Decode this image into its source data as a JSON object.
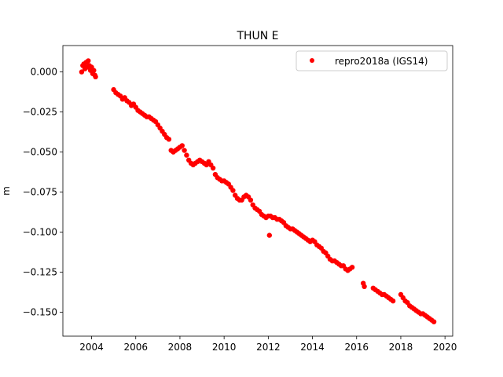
{
  "chart_data": {
    "type": "scatter",
    "title": "THUN E",
    "xlabel": "",
    "ylabel": "m",
    "xlim": [
      2002.7,
      2020.35
    ],
    "ylim": [
      -0.165,
      0.0165
    ],
    "x_ticks": [
      2004,
      2006,
      2008,
      2010,
      2012,
      2014,
      2016,
      2018,
      2020
    ],
    "x_tick_labels": [
      "2004",
      "2006",
      "2008",
      "2010",
      "2012",
      "2014",
      "2016",
      "2018",
      "2020"
    ],
    "y_ticks": [
      0.0,
      -0.025,
      -0.05,
      -0.075,
      -0.1,
      -0.125,
      -0.15
    ],
    "y_tick_labels": [
      "0.000",
      "−0.025",
      "−0.050",
      "−0.075",
      "−0.100",
      "−0.125",
      "−0.150"
    ],
    "grid": false,
    "legend_position": "top-right",
    "series": [
      {
        "name": "repro2018a (IGS14)",
        "color": "#ff0000",
        "marker": "circle",
        "points": [
          [
            2003.55,
            0.0
          ],
          [
            2003.6,
            0.004
          ],
          [
            2003.65,
            0.005
          ],
          [
            2003.7,
            0.002
          ],
          [
            2003.75,
            0.006
          ],
          [
            2003.8,
            0.003
          ],
          [
            2003.85,
            0.007
          ],
          [
            2003.9,
            0.004
          ],
          [
            2003.95,
            0.001
          ],
          [
            2004.0,
            0.003
          ],
          [
            2004.05,
            -0.001
          ],
          [
            2004.1,
            0.001
          ],
          [
            2004.15,
            -0.002
          ],
          [
            2004.18,
            -0.003
          ],
          [
            2005.0,
            -0.011
          ],
          [
            2005.1,
            -0.013
          ],
          [
            2005.2,
            -0.014
          ],
          [
            2005.3,
            -0.015
          ],
          [
            2005.4,
            -0.017
          ],
          [
            2005.5,
            -0.016
          ],
          [
            2005.6,
            -0.018
          ],
          [
            2005.7,
            -0.019
          ],
          [
            2005.8,
            -0.021
          ],
          [
            2005.9,
            -0.02
          ],
          [
            2006.0,
            -0.022
          ],
          [
            2006.1,
            -0.024
          ],
          [
            2006.2,
            -0.025
          ],
          [
            2006.3,
            -0.026
          ],
          [
            2006.4,
            -0.027
          ],
          [
            2006.5,
            -0.028
          ],
          [
            2006.6,
            -0.028
          ],
          [
            2006.7,
            -0.029
          ],
          [
            2006.8,
            -0.03
          ],
          [
            2006.9,
            -0.031
          ],
          [
            2007.0,
            -0.033
          ],
          [
            2007.1,
            -0.035
          ],
          [
            2007.2,
            -0.037
          ],
          [
            2007.3,
            -0.039
          ],
          [
            2007.4,
            -0.041
          ],
          [
            2007.5,
            -0.042
          ],
          [
            2007.6,
            -0.049
          ],
          [
            2007.7,
            -0.05
          ],
          [
            2007.8,
            -0.049
          ],
          [
            2007.9,
            -0.048
          ],
          [
            2008.0,
            -0.047
          ],
          [
            2008.1,
            -0.046
          ],
          [
            2008.2,
            -0.049
          ],
          [
            2008.3,
            -0.052
          ],
          [
            2008.4,
            -0.055
          ],
          [
            2008.5,
            -0.057
          ],
          [
            2008.6,
            -0.058
          ],
          [
            2008.7,
            -0.057
          ],
          [
            2008.8,
            -0.056
          ],
          [
            2008.9,
            -0.055
          ],
          [
            2009.0,
            -0.056
          ],
          [
            2009.1,
            -0.057
          ],
          [
            2009.2,
            -0.058
          ],
          [
            2009.3,
            -0.056
          ],
          [
            2009.4,
            -0.058
          ],
          [
            2009.5,
            -0.06
          ],
          [
            2009.6,
            -0.064
          ],
          [
            2009.7,
            -0.066
          ],
          [
            2009.8,
            -0.067
          ],
          [
            2009.9,
            -0.068
          ],
          [
            2010.0,
            -0.068
          ],
          [
            2010.1,
            -0.069
          ],
          [
            2010.2,
            -0.07
          ],
          [
            2010.3,
            -0.072
          ],
          [
            2010.4,
            -0.074
          ],
          [
            2010.5,
            -0.077
          ],
          [
            2010.6,
            -0.079
          ],
          [
            2010.7,
            -0.08
          ],
          [
            2010.8,
            -0.08
          ],
          [
            2010.9,
            -0.078
          ],
          [
            2011.0,
            -0.077
          ],
          [
            2011.1,
            -0.078
          ],
          [
            2011.2,
            -0.08
          ],
          [
            2011.3,
            -0.083
          ],
          [
            2011.4,
            -0.085
          ],
          [
            2011.5,
            -0.086
          ],
          [
            2011.6,
            -0.087
          ],
          [
            2011.7,
            -0.089
          ],
          [
            2011.8,
            -0.09
          ],
          [
            2011.9,
            -0.091
          ],
          [
            2012.0,
            -0.09
          ],
          [
            2012.05,
            -0.102
          ],
          [
            2012.1,
            -0.09
          ],
          [
            2012.2,
            -0.091
          ],
          [
            2012.3,
            -0.091
          ],
          [
            2012.4,
            -0.092
          ],
          [
            2012.5,
            -0.092
          ],
          [
            2012.6,
            -0.093
          ],
          [
            2012.7,
            -0.094
          ],
          [
            2012.8,
            -0.096
          ],
          [
            2012.9,
            -0.097
          ],
          [
            2013.0,
            -0.098
          ],
          [
            2013.1,
            -0.098
          ],
          [
            2013.2,
            -0.099
          ],
          [
            2013.3,
            -0.1
          ],
          [
            2013.4,
            -0.101
          ],
          [
            2013.5,
            -0.102
          ],
          [
            2013.6,
            -0.103
          ],
          [
            2013.7,
            -0.104
          ],
          [
            2013.8,
            -0.105
          ],
          [
            2013.9,
            -0.106
          ],
          [
            2014.0,
            -0.105
          ],
          [
            2014.1,
            -0.106
          ],
          [
            2014.2,
            -0.108
          ],
          [
            2014.3,
            -0.109
          ],
          [
            2014.4,
            -0.11
          ],
          [
            2014.5,
            -0.112
          ],
          [
            2014.6,
            -0.113
          ],
          [
            2014.7,
            -0.115
          ],
          [
            2014.8,
            -0.117
          ],
          [
            2014.9,
            -0.118
          ],
          [
            2015.0,
            -0.118
          ],
          [
            2015.1,
            -0.119
          ],
          [
            2015.2,
            -0.12
          ],
          [
            2015.3,
            -0.121
          ],
          [
            2015.4,
            -0.121
          ],
          [
            2015.5,
            -0.123
          ],
          [
            2015.6,
            -0.124
          ],
          [
            2015.7,
            -0.123
          ],
          [
            2015.8,
            -0.122
          ],
          [
            2016.3,
            -0.132
          ],
          [
            2016.35,
            -0.134
          ],
          [
            2016.75,
            -0.135
          ],
          [
            2016.85,
            -0.136
          ],
          [
            2016.95,
            -0.137
          ],
          [
            2017.05,
            -0.138
          ],
          [
            2017.15,
            -0.139
          ],
          [
            2017.25,
            -0.139
          ],
          [
            2017.35,
            -0.14
          ],
          [
            2017.45,
            -0.141
          ],
          [
            2017.55,
            -0.142
          ],
          [
            2017.65,
            -0.143
          ],
          [
            2018.0,
            -0.139
          ],
          [
            2018.1,
            -0.141
          ],
          [
            2018.2,
            -0.143
          ],
          [
            2018.3,
            -0.144
          ],
          [
            2018.4,
            -0.146
          ],
          [
            2018.5,
            -0.147
          ],
          [
            2018.6,
            -0.148
          ],
          [
            2018.7,
            -0.149
          ],
          [
            2018.8,
            -0.15
          ],
          [
            2018.9,
            -0.151
          ],
          [
            2019.0,
            -0.151
          ],
          [
            2019.1,
            -0.152
          ],
          [
            2019.2,
            -0.153
          ],
          [
            2019.3,
            -0.154
          ],
          [
            2019.4,
            -0.155
          ],
          [
            2019.5,
            -0.156
          ]
        ]
      }
    ]
  }
}
